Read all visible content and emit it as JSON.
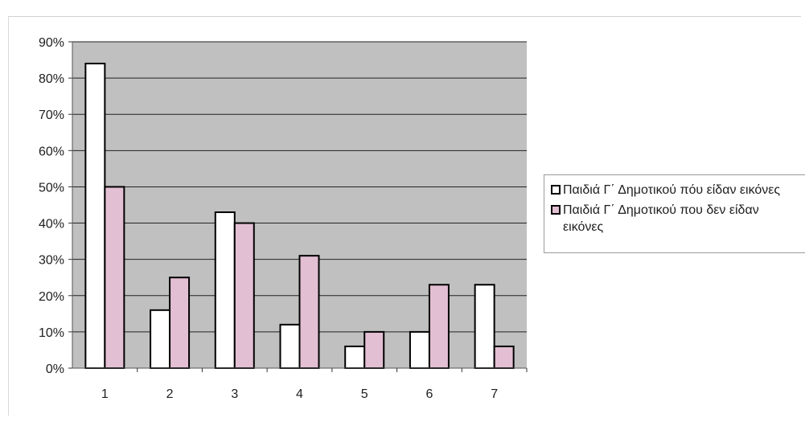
{
  "colors": {
    "plot_background": "#c0c0c0",
    "gridline": "#222222",
    "series_1": "#ffffff",
    "series_2": "#e3bfd3",
    "bar_border": "#000000"
  },
  "legend": {
    "placement": "right",
    "entries": [
      "Παιδιά Γ΄ Δημοτικού πόυ είδαν εικόνες",
      "Παιδιά Γ΄ Δημοτικού που δεν είδαν εικόνες"
    ]
  },
  "chart_data": {
    "type": "bar",
    "title": "",
    "xlabel": "",
    "ylabel": "",
    "categories": [
      "1",
      "2",
      "3",
      "4",
      "5",
      "6",
      "7"
    ],
    "series": [
      {
        "name": "Παιδιά Γ΄ Δημοτικού πόυ είδαν εικόνες",
        "values": [
          84,
          16,
          43,
          12,
          6,
          10,
          23
        ]
      },
      {
        "name": "Παιδιά Γ΄ Δημοτικού που δεν είδαν εικόνες",
        "values": [
          50,
          25,
          40,
          31,
          10,
          23,
          6
        ]
      }
    ],
    "ylim": [
      0,
      90
    ],
    "yticks": [
      0,
      10,
      20,
      30,
      40,
      50,
      60,
      70,
      80,
      90
    ],
    "ytick_labels": [
      "0%",
      "10%",
      "20%",
      "30%",
      "40%",
      "50%",
      "60%",
      "70%",
      "80%",
      "90%"
    ],
    "grid": true,
    "legend_position": "right"
  }
}
